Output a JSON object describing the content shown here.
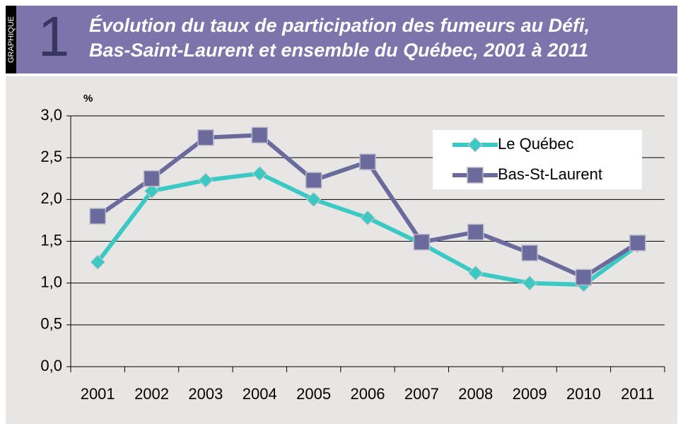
{
  "chart_data": {
    "type": "line",
    "graphic_label": "GRAPHIQUE",
    "graphic_number": "1",
    "title": [
      "Évolution du taux de participation des fumeurs au Défi,",
      "Bas-Saint-Laurent et ensemble du Québec, 2001 à 2011"
    ],
    "y_label": "%",
    "categories": [
      "2001",
      "2002",
      "2003",
      "2004",
      "2005",
      "2006",
      "2007",
      "2008",
      "2009",
      "2010",
      "2011"
    ],
    "series": [
      {
        "name": "Le Québec",
        "color": "#3cc9c4",
        "marker": "diamond",
        "values": [
          1.25,
          2.1,
          2.23,
          2.31,
          2.0,
          1.78,
          1.47,
          1.12,
          1.0,
          0.98,
          1.45
        ]
      },
      {
        "name": "Bas-St-Laurent",
        "color": "#6a6a9c",
        "marker": "square",
        "values": [
          1.8,
          2.25,
          2.74,
          2.77,
          2.23,
          2.45,
          1.49,
          1.61,
          1.36,
          1.07,
          1.48
        ]
      }
    ],
    "ylim": [
      0,
      3
    ],
    "yticks": [
      {
        "value": 0,
        "label": "0,0"
      },
      {
        "value": 0.5,
        "label": "0,5"
      },
      {
        "value": 1,
        "label": "1,0"
      },
      {
        "value": 1.5,
        "label": "1,5"
      },
      {
        "value": 2,
        "label": "2,0"
      },
      {
        "value": 2.5,
        "label": "2,5"
      },
      {
        "value": 3,
        "label": "3,0"
      }
    ],
    "grid": true,
    "legend": "upper right"
  }
}
